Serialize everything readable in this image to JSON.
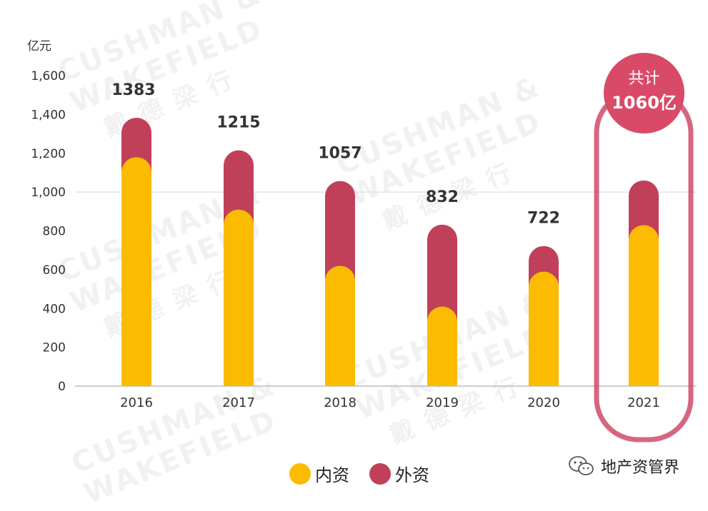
{
  "watermark": {
    "line1": "CUSHMAN &",
    "line2": "WAKEFIELD",
    "line3": "戴德梁行"
  },
  "unit_label": "亿元",
  "callout": {
    "line1": "共计",
    "line2": "1060亿"
  },
  "legend": [
    {
      "label": "内资",
      "color": "#fbbb00"
    },
    {
      "label": "外资",
      "color": "#c0405a"
    }
  ],
  "source_label": "地产资管界",
  "colors": {
    "domestic": "#fbbb00",
    "foreign": "#c0405a",
    "highlight_frame": "#cf4b69",
    "gridline": "#e3e3e3",
    "axis_text": "#333333"
  },
  "chart_data": {
    "type": "bar",
    "stacked": true,
    "categories": [
      "2016",
      "2017",
      "2018",
      "2019",
      "2020",
      "2021"
    ],
    "series": [
      {
        "name": "内资",
        "values": [
          1180,
          910,
          620,
          410,
          590,
          830
        ]
      },
      {
        "name": "外资",
        "values": [
          203,
          305,
          437,
          422,
          132,
          230
        ]
      }
    ],
    "totals": [
      "1383",
      "1215",
      "1057",
      "832",
      "722",
      ""
    ],
    "yticks": [
      "0",
      "200",
      "400",
      "600",
      "800",
      "1,000",
      "1,200",
      "1,400",
      "1,600"
    ],
    "ylim": [
      0,
      1600
    ],
    "ylabel": "亿元",
    "highlight_category": "2021"
  }
}
